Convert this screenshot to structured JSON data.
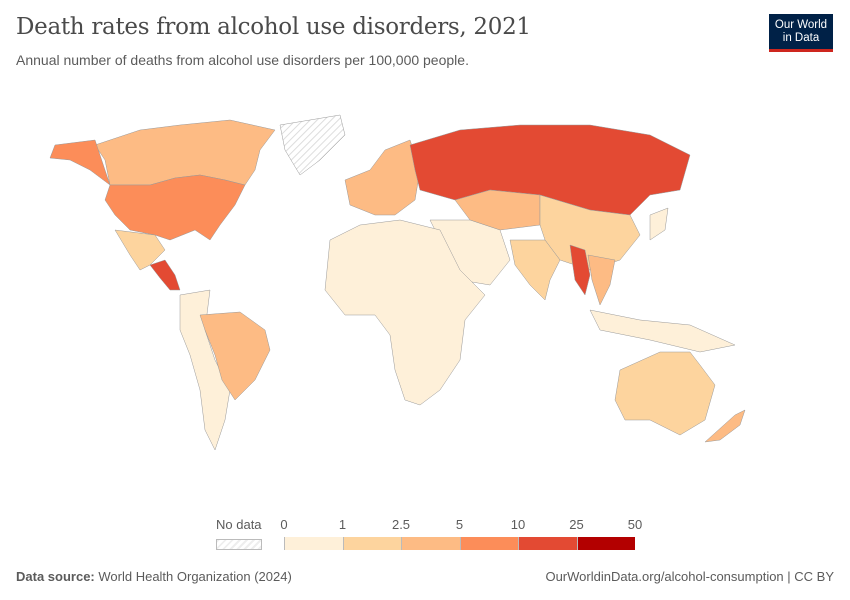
{
  "header": {
    "title": "Death rates from alcohol use disorders, 2021",
    "subtitle": "Annual number of deaths from alcohol use disorders per 100,000 people.",
    "logo_line1": "Our World",
    "logo_line2": "in Data"
  },
  "legend": {
    "no_data_label": "No data",
    "ticks": [
      "0",
      "1",
      "2.5",
      "5",
      "10",
      "25",
      "50"
    ],
    "colors": [
      "#fef0d9",
      "#fdd49e",
      "#fdbb84",
      "#fc8d59",
      "#e34a33",
      "#b30000"
    ],
    "no_data_color": "#eeeeee"
  },
  "map": {
    "country_colors": {
      "canada": "#fdbb84",
      "alaska": "#fc8d59",
      "greenland": "no-data",
      "usa": "#fc8d59",
      "mexico": "#fdd49e",
      "central_america": "#e34a33",
      "brazil": "#fdbb84",
      "south_america_other": "#fef0d9",
      "europe": "#fdbb84",
      "russia": "#e34a33",
      "central_asia": "#fdbb84",
      "africa": "#fef0d9",
      "middle_east": "#fef0d9",
      "china": "#fdd49e",
      "india": "#fdd49e",
      "myanmar": "#e34a33",
      "southeast_asia": "#fdbb84",
      "indonesia": "#fef0d9",
      "australia": "#fdd49e",
      "new_zealand": "#fdbb84",
      "japan": "#fef0d9"
    }
  },
  "footer": {
    "source_label": "Data source:",
    "source_text": "World Health Organization (2024)",
    "url_text": "OurWorldinData.org/alcohol-consumption | CC BY"
  }
}
